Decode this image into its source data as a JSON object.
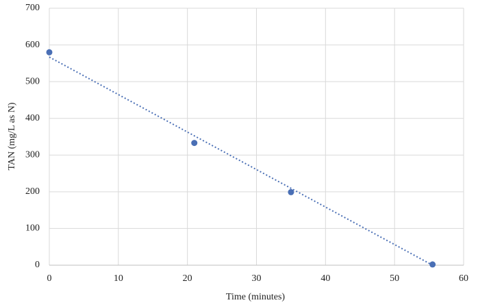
{
  "chart_data": {
    "type": "scatter",
    "x_label": "Time (minutes)",
    "y_label": "TAN  (mg/L  as N)",
    "series": [
      {
        "x": [
          0,
          21,
          35,
          55.5
        ],
        "values": [
          580,
          333,
          199,
          2
        ],
        "color": "#4a6fb5"
      }
    ],
    "trendline": {
      "x": [
        0,
        55.5
      ],
      "values": [
        567,
        0
      ],
      "color": "#4a6fb5",
      "style": "dotted"
    },
    "xlim": [
      0,
      60
    ],
    "xticks": [
      0,
      10,
      20,
      30,
      40,
      50,
      60
    ],
    "ylim": [
      0,
      700
    ],
    "yticks": [
      0,
      100,
      200,
      300,
      400,
      500,
      600,
      700
    ],
    "grid": true
  }
}
